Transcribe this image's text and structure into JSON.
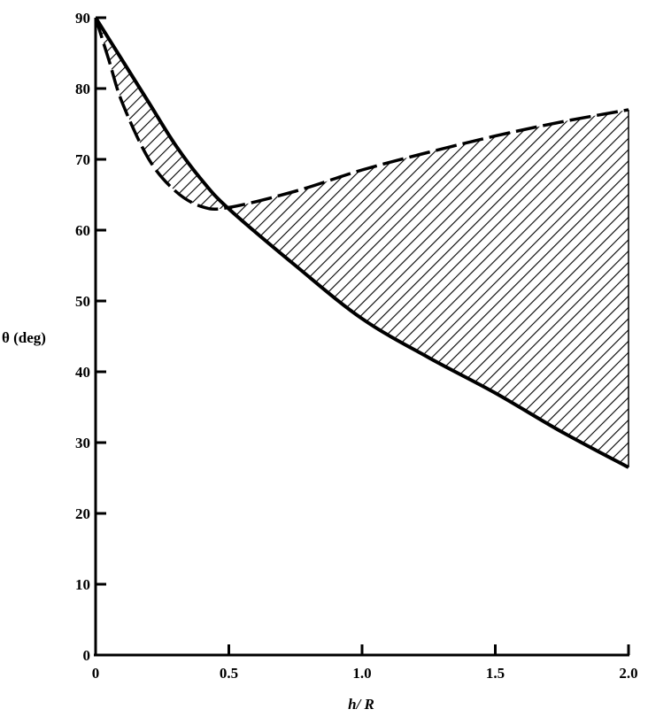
{
  "chart_data": {
    "type": "line",
    "title": "",
    "xlabel": "h/ R",
    "ylabel": "θ (deg)",
    "xlim": [
      0,
      2.0
    ],
    "ylim": [
      0,
      90
    ],
    "xticks": [
      "0",
      "0.5",
      "1.0",
      "1.5",
      "2.0"
    ],
    "xtick_values": [
      0,
      0.5,
      1.0,
      1.5,
      2.0
    ],
    "yticks": [
      "0",
      "10",
      "20",
      "30",
      "40",
      "50",
      "60",
      "70",
      "80",
      "90"
    ],
    "ytick_values": [
      0,
      10,
      20,
      30,
      40,
      50,
      60,
      70,
      80,
      90
    ],
    "grid": false,
    "series": [
      {
        "style": "solid",
        "x": [
          0,
          0.1,
          0.2,
          0.3,
          0.4,
          0.5,
          0.75,
          1.0,
          1.25,
          1.5,
          1.75,
          2.0
        ],
        "y": [
          90,
          84,
          78,
          72,
          67,
          63,
          55,
          47.5,
          42,
          37,
          31.5,
          26.5
        ]
      },
      {
        "style": "dashed",
        "x": [
          0,
          0.05,
          0.1,
          0.2,
          0.3,
          0.4,
          0.5,
          0.75,
          1.0,
          1.25,
          1.5,
          1.75,
          2.0
        ],
        "y": [
          90,
          84,
          78,
          70,
          65.5,
          63.3,
          63.2,
          65.5,
          68.5,
          71,
          73.3,
          75.3,
          77
        ]
      }
    ],
    "shaded_region": "between series, hatched",
    "color": "#000000"
  }
}
